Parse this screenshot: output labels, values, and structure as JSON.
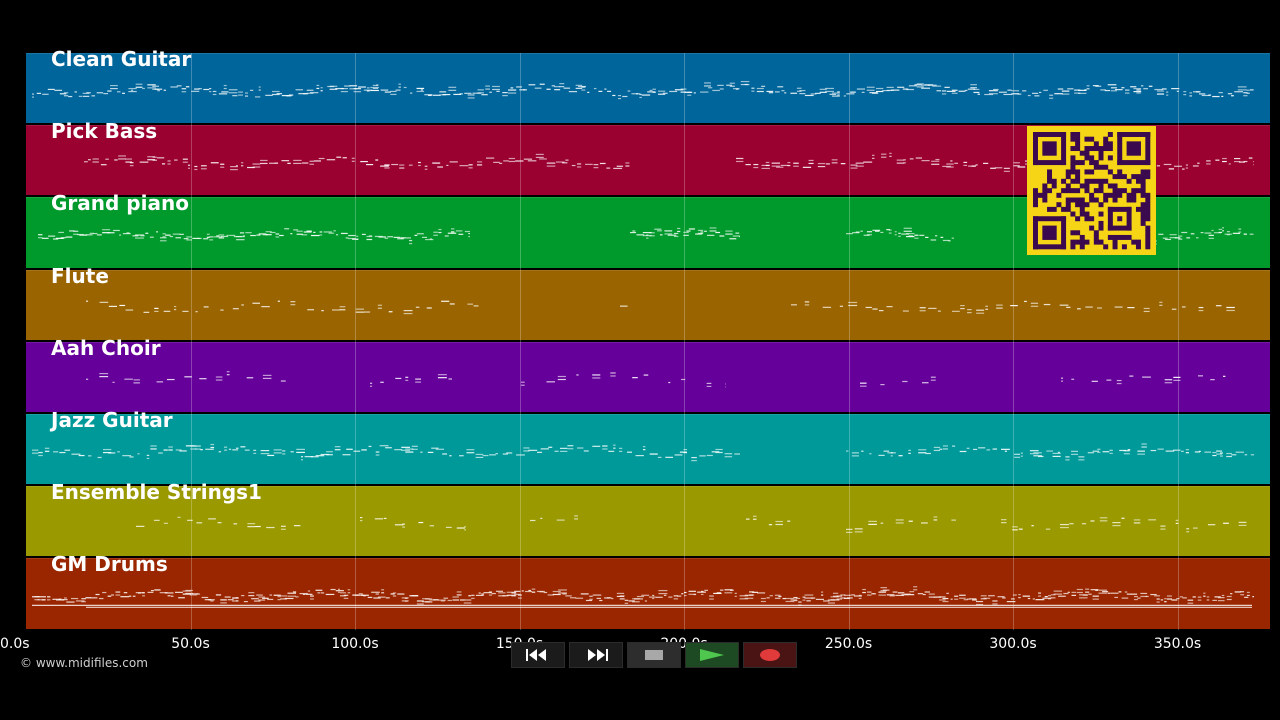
{
  "tracks": [
    {
      "name": "Clean Guitar",
      "color": "#00659a"
    },
    {
      "name": "Pick Bass",
      "color": "#9a0030"
    },
    {
      "name": "Grand piano",
      "color": "#009a2c"
    },
    {
      "name": "Flute",
      "color": "#9a6400"
    },
    {
      "name": "Aah Choir",
      "color": "#65009a"
    },
    {
      "name": "Jazz Guitar",
      "color": "#00999a"
    },
    {
      "name": "Ensemble Strings1",
      "color": "#9a9900"
    },
    {
      "name": "GM Drums",
      "color": "#9a2600"
    }
  ],
  "timeline": {
    "ticks": [
      "0.0s",
      "50.0s",
      "100.0s",
      "150.0s",
      "200.0s",
      "250.0s",
      "300.0s",
      "350.0s"
    ],
    "tick_values": [
      0,
      50,
      100,
      150,
      200,
      250,
      300,
      350
    ],
    "max_seconds": 378
  },
  "copyright": "© www.midifiles.com",
  "transport": {
    "icons": [
      "rewind-icon",
      "fast-forward-icon",
      "stop-icon",
      "play-icon",
      "record-icon"
    ],
    "play_color": "#4fc74f",
    "record_color": "#e03a3a",
    "stop_color": "#a8a8a8"
  },
  "qr": {
    "bg": "#f5d516",
    "fg": "#3b0a4e"
  }
}
